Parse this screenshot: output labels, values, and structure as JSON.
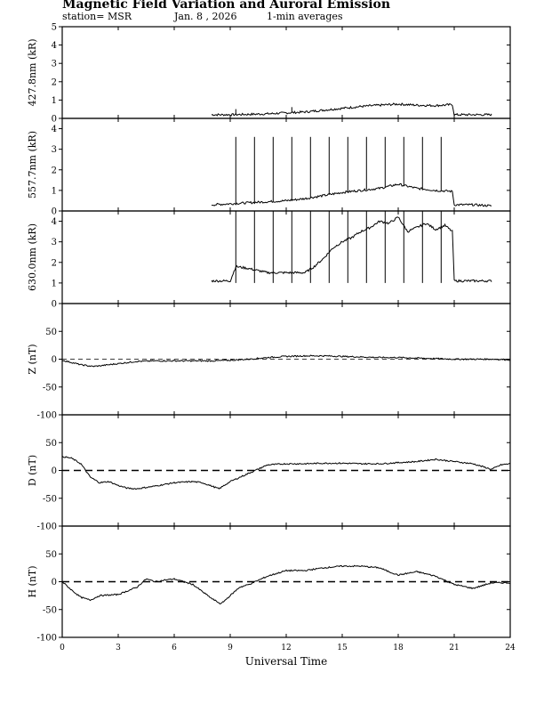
{
  "header": {
    "title": "Magnetic Field Variation and Auroral Emission",
    "station": "station= MSR",
    "date": "Jan. 8 , 2026",
    "averaging": "1-min averages"
  },
  "chart_data": [
    {
      "type": "line",
      "panel": "427.8nm",
      "ylabel": "427.8nm (kR)",
      "ylim": [
        0,
        5
      ],
      "yticks": [
        0,
        1,
        2,
        3,
        4,
        5
      ],
      "x": [
        8.0,
        9.0,
        10.0,
        11.0,
        12.0,
        13.0,
        14.0,
        15.0,
        16.0,
        17.0,
        18.0,
        19.0,
        20.0,
        20.9,
        21.0,
        22.0,
        23.0
      ],
      "values": [
        0.2,
        0.2,
        0.22,
        0.25,
        0.3,
        0.35,
        0.45,
        0.55,
        0.65,
        0.72,
        0.78,
        0.72,
        0.7,
        0.75,
        0.2,
        0.2,
        0.2
      ],
      "spikes": [
        9.3,
        12.3
      ]
    },
    {
      "type": "line",
      "panel": "557.7nm",
      "ylabel": "557.7nm (kR)",
      "ylim": [
        0,
        4.5
      ],
      "yticks": [
        0,
        1,
        2,
        3,
        4
      ],
      "x": [
        8.0,
        9.0,
        10.0,
        11.0,
        12.0,
        13.0,
        14.0,
        15.0,
        16.0,
        17.0,
        18.0,
        19.0,
        20.0,
        20.9,
        21.0,
        22.0,
        23.0
      ],
      "values": [
        0.3,
        0.35,
        0.4,
        0.45,
        0.5,
        0.6,
        0.75,
        0.9,
        1.0,
        1.1,
        1.3,
        1.1,
        1.0,
        0.95,
        0.3,
        0.3,
        0.25
      ],
      "spikes": [
        9.3,
        10.3,
        11.3,
        12.3,
        13.3,
        14.3,
        15.3,
        16.3,
        17.3,
        18.3,
        19.3,
        20.3
      ],
      "spike_peak": 3.6
    },
    {
      "type": "line",
      "panel": "630.0nm",
      "ylabel": "630.0nm (kR)",
      "ylim": [
        0,
        4.5
      ],
      "yticks": [
        0,
        1,
        2,
        3,
        4
      ],
      "x": [
        8.0,
        9.0,
        9.3,
        10.0,
        11.0,
        12.0,
        13.0,
        13.5,
        14.0,
        14.5,
        15.0,
        15.5,
        16.0,
        16.5,
        17.0,
        17.5,
        18.0,
        18.5,
        19.0,
        19.5,
        20.0,
        20.5,
        20.9,
        21.0,
        22.0,
        23.0
      ],
      "values": [
        1.1,
        1.1,
        1.8,
        1.7,
        1.5,
        1.5,
        1.5,
        1.8,
        2.2,
        2.7,
        3.0,
        3.2,
        3.5,
        3.7,
        4.0,
        3.9,
        4.2,
        3.5,
        3.7,
        3.9,
        3.6,
        3.8,
        3.5,
        1.1,
        1.1,
        1.1
      ],
      "spikes": [
        9.3,
        10.3,
        11.3,
        12.3,
        13.3,
        14.3,
        15.3,
        16.3,
        17.3,
        18.3,
        19.3,
        20.3
      ],
      "spike_low": 1.0
    },
    {
      "type": "line",
      "panel": "Z",
      "ylabel": "Z (nT)",
      "ylim": [
        -100,
        100
      ],
      "yticks": [
        -100,
        -50,
        0,
        50
      ],
      "baseline": "thin-dashed",
      "x": [
        0,
        0.5,
        1.0,
        1.6,
        2.0,
        3.0,
        4.0,
        5.0,
        6.0,
        7.0,
        8.0,
        9.0,
        10.0,
        11.0,
        12.0,
        13.0,
        14.0,
        15.0,
        16.0,
        17.0,
        18.0,
        19.0,
        20.0,
        21.0,
        22.0,
        23.0,
        24.0
      ],
      "values": [
        -2,
        -6,
        -10,
        -13,
        -12,
        -8,
        -4,
        -3,
        -3,
        -3,
        -3,
        -2,
        0,
        3,
        5,
        6,
        6,
        5,
        4,
        3,
        3,
        2,
        1,
        0,
        0,
        0,
        -1
      ]
    },
    {
      "type": "line",
      "panel": "D",
      "ylabel": "D (nT)",
      "ylim": [
        -100,
        100
      ],
      "yticks": [
        -100,
        -50,
        0,
        50
      ],
      "baseline": "thick-dashed",
      "x": [
        0,
        0.5,
        1.0,
        1.5,
        2.0,
        2.5,
        3.0,
        3.5,
        4.0,
        5.0,
        6.0,
        7.0,
        7.5,
        8.0,
        8.4,
        9.0,
        10.0,
        11.0,
        12.0,
        13.0,
        14.0,
        15.0,
        16.0,
        17.0,
        18.0,
        19.0,
        20.0,
        21.0,
        22.0,
        23.0,
        23.5,
        24.0
      ],
      "values": [
        25,
        22,
        12,
        -12,
        -22,
        -20,
        -27,
        -32,
        -33,
        -28,
        -22,
        -20,
        -22,
        -28,
        -33,
        -20,
        -5,
        10,
        12,
        12,
        13,
        13,
        12,
        12,
        14,
        16,
        20,
        16,
        12,
        2,
        10,
        12
      ]
    },
    {
      "type": "line",
      "panel": "H",
      "ylabel": "H (nT)",
      "ylim": [
        -100,
        100
      ],
      "yticks": [
        -100,
        -50,
        0,
        50
      ],
      "baseline": "thick-dashed",
      "x": [
        0,
        0.5,
        1.0,
        1.5,
        2.0,
        3.0,
        4.0,
        4.5,
        5.0,
        5.5,
        6.0,
        7.0,
        8.0,
        8.5,
        9.0,
        9.5,
        10.0,
        11.0,
        12.0,
        13.0,
        14.0,
        15.0,
        16.0,
        17.0,
        17.5,
        18.0,
        19.0,
        20.0,
        21.0,
        22.0,
        23.0,
        24.0
      ],
      "values": [
        0,
        -15,
        -28,
        -33,
        -25,
        -23,
        -10,
        5,
        0,
        3,
        5,
        -5,
        -30,
        -40,
        -25,
        -10,
        -5,
        10,
        20,
        20,
        25,
        28,
        28,
        25,
        18,
        12,
        18,
        10,
        -5,
        -12,
        -2,
        -2
      ]
    }
  ],
  "x_axis": {
    "label": "Universal Time",
    "xlim": [
      0,
      24
    ],
    "ticks": [
      "0",
      "3",
      "6",
      "9",
      "12",
      "15",
      "18",
      "21",
      "24"
    ]
  }
}
